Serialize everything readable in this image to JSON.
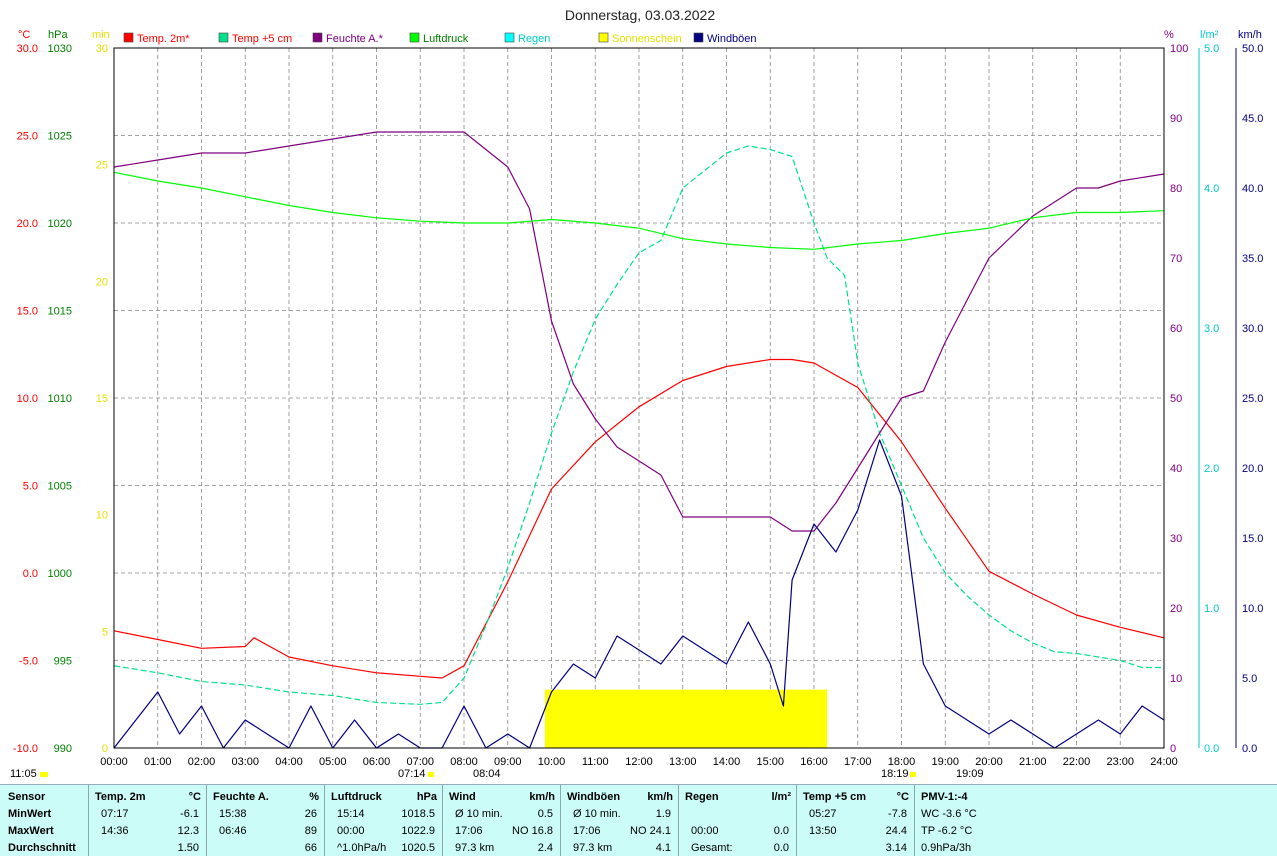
{
  "title": "Donnerstag, 03.03.2022",
  "axis_units": {
    "temp": "°C",
    "pressure": "hPa",
    "sun": "min",
    "humidity": "%",
    "rain": "l/m²",
    "wind": "km/h"
  },
  "legend": [
    {
      "label": "Temp. 2m*",
      "color": "#ff0000",
      "text_color": "#ff0000"
    },
    {
      "label": "Temp +5 cm",
      "color": "#00e08a",
      "text_color": "#ff0000"
    },
    {
      "label": "Feuchte A.*",
      "color": "#800080",
      "text_color": "#800080"
    },
    {
      "label": "Luftdruck",
      "color": "#00ff00",
      "text_color": "#008000"
    },
    {
      "label": "Regen",
      "color": "#00ffff",
      "text_color": "#00c8c8"
    },
    {
      "label": "Sonnenschein",
      "color": "#ffff00",
      "text_color": "#e8e000"
    },
    {
      "label": "Windböen",
      "color": "#000080",
      "text_color": "#000080"
    }
  ],
  "time_markers": {
    "left_time": "11:05",
    "sunrise": "07:14",
    "sun_start": "08:04",
    "sun_end": "18:19",
    "sunset": "19:09"
  },
  "chart_data": {
    "type": "line",
    "title": "Donnerstag, 03.03.2022",
    "x_label": "",
    "x_range": [
      0,
      24
    ],
    "x_tick_labels": [
      "00:00",
      "01:00",
      "02:00",
      "03:00",
      "04:00",
      "05:00",
      "06:00",
      "07:00",
      "08:00",
      "09:00",
      "10:00",
      "11:00",
      "12:00",
      "13:00",
      "14:00",
      "15:00",
      "16:00",
      "17:00",
      "18:00",
      "19:00",
      "20:00",
      "21:00",
      "22:00",
      "23:00",
      "24:00"
    ],
    "axes": {
      "temp": {
        "unit": "°C",
        "range": [
          -10,
          30
        ],
        "ticks": [
          "30.0",
          "25.0",
          "20.0",
          "15.0",
          "10.0",
          "5.0",
          "0.0",
          "-5.0",
          "-10.0"
        ]
      },
      "pressure": {
        "unit": "hPa",
        "range": [
          990,
          1030
        ],
        "ticks": [
          "1030",
          "1025",
          "1020",
          "1015",
          "1010",
          "1005",
          "1000",
          "995",
          "990"
        ]
      },
      "sun": {
        "unit": "min",
        "range": [
          0,
          30
        ],
        "ticks": [
          "30",
          "25",
          "20",
          "15",
          "10",
          "5",
          "0"
        ]
      },
      "humidity": {
        "unit": "%",
        "range": [
          0,
          100
        ],
        "ticks": [
          "100",
          "90",
          "80",
          "70",
          "60",
          "50",
          "40",
          "30",
          "20",
          "10",
          "0"
        ]
      },
      "rain": {
        "unit": "l/m²",
        "range": [
          0,
          5
        ],
        "ticks": [
          "5.0",
          "4.0",
          "3.0",
          "2.0",
          "1.0",
          "0.0"
        ]
      },
      "wind": {
        "unit": "km/h",
        "range": [
          0,
          50
        ],
        "ticks": [
          "50.0",
          "45.0",
          "40.0",
          "35.0",
          "30.0",
          "25.0",
          "20.0",
          "15.0",
          "10.0",
          "5.0",
          "0.0"
        ]
      }
    },
    "grid": true,
    "series": [
      {
        "name": "Temp. 2m*",
        "axis": "temp",
        "color": "#ff0000",
        "x": [
          0,
          1,
          2,
          3,
          3.2,
          4,
          5,
          6,
          7,
          7.5,
          8,
          9,
          10,
          11,
          12,
          13,
          14,
          15,
          15.5,
          16,
          17,
          18,
          19,
          20,
          21,
          22,
          23,
          24
        ],
        "y": [
          -3.3,
          -3.8,
          -4.3,
          -4.2,
          -3.7,
          -4.8,
          -5.3,
          -5.7,
          -5.9,
          -6.0,
          -5.3,
          -0.5,
          4.8,
          7.5,
          9.5,
          11.0,
          11.8,
          12.2,
          12.2,
          12.0,
          10.6,
          7.5,
          3.7,
          0.1,
          -1.2,
          -2.4,
          -3.1,
          -3.7
        ]
      },
      {
        "name": "Temp +5 cm",
        "axis": "temp",
        "color": "#00e08a",
        "dashed": true,
        "x": [
          0,
          1,
          2,
          3,
          4,
          5,
          6,
          7,
          7.5,
          8,
          8.5,
          9,
          9.5,
          10,
          10.5,
          11,
          11.5,
          12,
          12.5,
          13,
          13.5,
          14,
          14.5,
          15,
          15.5,
          16,
          16.3,
          16.7,
          17,
          17.5,
          18,
          18.5,
          19,
          19.5,
          20,
          20.5,
          21,
          21.5,
          22,
          22.5,
          23,
          23.5,
          24
        ],
        "y": [
          -5.3,
          -5.7,
          -6.2,
          -6.4,
          -6.8,
          -7.0,
          -7.4,
          -7.5,
          -7.4,
          -6.0,
          -3.0,
          0.3,
          4.0,
          8.0,
          11.5,
          14.5,
          16.5,
          18.3,
          19.0,
          22.0,
          23.0,
          24.0,
          24.4,
          24.2,
          23.8,
          20.0,
          18.0,
          17.0,
          12.0,
          8.0,
          5.0,
          2.0,
          0.0,
          -1.3,
          -2.4,
          -3.3,
          -4.0,
          -4.5,
          -4.6,
          -4.8,
          -5.0,
          -5.4,
          -5.4
        ]
      },
      {
        "name": "Feuchte A.*",
        "axis": "humidity",
        "color": "#800080",
        "x": [
          0,
          1,
          2,
          3,
          4,
          5,
          6,
          6.8,
          7,
          8,
          9,
          9.5,
          10,
          10.5,
          11,
          11.5,
          12,
          12.5,
          13,
          14,
          15,
          15.5,
          16,
          16.5,
          17,
          17.5,
          18,
          18.5,
          19,
          19.5,
          20,
          20.5,
          21,
          21.5,
          22,
          22.5,
          23,
          24
        ],
        "y": [
          83,
          84,
          85,
          85,
          86,
          87,
          88,
          88,
          88,
          88,
          83,
          77,
          61,
          52,
          47,
          43,
          41,
          39,
          33,
          33,
          33,
          31,
          31,
          35,
          40,
          45,
          50,
          51,
          58,
          64,
          70,
          73,
          76,
          78,
          80,
          80,
          81,
          82
        ]
      },
      {
        "name": "Luftdruck",
        "axis": "pressure",
        "color": "#00ff00",
        "x": [
          0,
          1,
          2,
          3,
          4,
          5,
          6,
          7,
          8,
          9,
          10,
          11,
          12,
          13,
          14,
          15,
          16,
          17,
          18,
          19,
          20,
          21,
          22,
          23,
          24
        ],
        "y": [
          1022.9,
          1022.4,
          1022.0,
          1021.5,
          1021.0,
          1020.6,
          1020.3,
          1020.1,
          1020.0,
          1020.0,
          1020.2,
          1020.0,
          1019.7,
          1019.1,
          1018.8,
          1018.6,
          1018.5,
          1018.8,
          1019.0,
          1019.4,
          1019.7,
          1020.3,
          1020.6,
          1020.6,
          1020.7
        ]
      },
      {
        "name": "Windböen",
        "axis": "wind",
        "color": "#000080",
        "x": [
          0,
          0.5,
          1,
          1.5,
          2,
          2.5,
          3,
          3.5,
          4,
          4.5,
          5,
          5.5,
          6,
          6.5,
          7,
          7.5,
          8,
          8.5,
          9,
          9.5,
          10,
          10.5,
          11,
          11.5,
          12,
          12.5,
          13,
          13.5,
          14,
          14.5,
          15,
          15.3,
          15.5,
          16,
          16.5,
          17,
          17.3,
          17.5,
          18,
          18.5,
          19,
          19.5,
          20,
          20.5,
          21,
          21.5,
          22,
          22.5,
          23,
          23.5,
          24
        ],
        "y": [
          0,
          2,
          4,
          1,
          3,
          0,
          2,
          1,
          0,
          3,
          0,
          2,
          0,
          1,
          0,
          0,
          3,
          0,
          1,
          0,
          4,
          6,
          5,
          8,
          7,
          6,
          8,
          7,
          6,
          9,
          6,
          3,
          12,
          16,
          14,
          17,
          20,
          22,
          18,
          6,
          3,
          2,
          1,
          2,
          1,
          0,
          1,
          2,
          1,
          3,
          2
        ]
      },
      {
        "name": "Sonnenschein",
        "axis": "sun",
        "color": "#ffff00",
        "type": "bar",
        "x_start": 9.85,
        "x_end": 16.3,
        "y": 2.5
      }
    ]
  },
  "table": {
    "rows": [
      "Sensor",
      "MinWert",
      "MaxWert",
      "Durchschnitt"
    ],
    "columns": [
      {
        "header": "Temp. 2m",
        "unit": "°C",
        "min_time": "07:17",
        "min_val": "-6.1",
        "max_time": "14:36",
        "max_val": "12.3",
        "avg_label": "",
        "avg_val": "1.50"
      },
      {
        "header": "Feuchte A.",
        "unit": "%",
        "min_time": "15:38",
        "min_val": "26",
        "max_time": "06:46",
        "max_val": "89",
        "avg_label": "",
        "avg_val": "66"
      },
      {
        "header": "Luftdruck",
        "unit": "hPa",
        "min_time": "15:14",
        "min_val": "1018.5",
        "max_time": "00:00",
        "max_val": "1022.9",
        "avg_label": "^1.0hPa/h",
        "avg_val": "1020.5"
      },
      {
        "header": "Wind",
        "unit": "km/h",
        "min_time": "Ø 10 min.",
        "min_val": "0.5",
        "max_time": "17:06",
        "max_val": "NO 16.8",
        "avg_label": "97.3 km",
        "avg_val": "2.4"
      },
      {
        "header": "Windböen",
        "unit": "km/h",
        "min_time": "Ø 10 min.",
        "min_val": "1.9",
        "max_time": "17:06",
        "max_val": "NO 24.1",
        "avg_label": "97.3 km",
        "avg_val": "4.1"
      },
      {
        "header": "Regen",
        "unit": "l/m²",
        "min_time": "",
        "min_val": "",
        "max_time": "00:00",
        "max_val": "0.0",
        "avg_label": "Gesamt:",
        "avg_val": "0.0"
      },
      {
        "header": "Temp +5 cm",
        "unit": "°C",
        "min_time": "05:27",
        "min_val": "-7.8",
        "max_time": "13:50",
        "max_val": "24.4",
        "avg_label": "",
        "avg_val": "3.14"
      }
    ],
    "pmv": {
      "header": "PMV-1:-4",
      "min": "WC -3.6 °C",
      "max": "TP -6.2 °C",
      "avg": "0.9hPa/3h"
    }
  }
}
